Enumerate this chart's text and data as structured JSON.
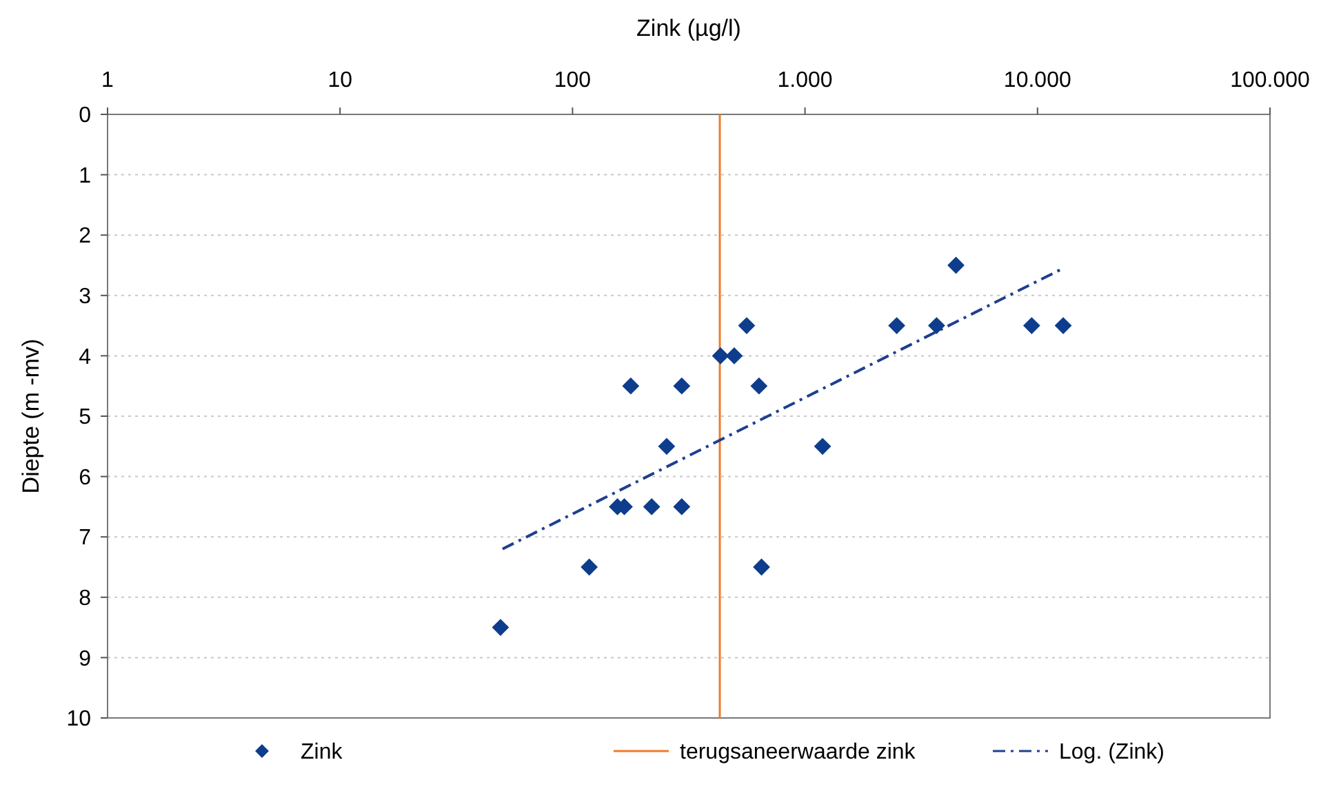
{
  "chart_data": {
    "type": "scatter",
    "xlabel": "Zink (µg/l)",
    "ylabel": "Diepte (m -mv)",
    "log": "x",
    "xlim": [
      1,
      100000
    ],
    "xticks": [
      1,
      10,
      100,
      {
        "value": 1000,
        "label": "1.000"
      },
      {
        "value": 10000,
        "label": "10.000"
      },
      {
        "value": 100000,
        "label": "100.000"
      }
    ],
    "ylim": [
      10,
      0
    ],
    "yticks": [
      0,
      1,
      2,
      3,
      4,
      5,
      6,
      7,
      8,
      9,
      10
    ],
    "grid": "y",
    "legend": "bottom",
    "series": [
      {
        "name": "Zink",
        "color": "#0d3d8c",
        "marker": "diamond",
        "x": [
          49,
          118,
          650,
          156,
          167,
          219,
          295,
          254,
          1190,
          178,
          295,
          634,
          433,
          496,
          561,
          4460,
          2480,
          3680,
          9440,
          12900
        ],
        "values": [
          8.5,
          7.5,
          7.5,
          6.5,
          6.5,
          6.5,
          6.5,
          5.5,
          5.5,
          4.5,
          4.5,
          4.5,
          4,
          4,
          3.5,
          2.5,
          3.5,
          3.5,
          3.5,
          3.5
        ]
      },
      {
        "name": "Log. (Zink)",
        "type": "line",
        "color": "#1f3f8f",
        "line_style": "dashed",
        "marker": "none",
        "x": [
          50,
          12900
        ],
        "values": [
          7.2,
          2.55
        ]
      }
    ],
    "ref_lines": [
      {
        "axis": "x",
        "value": 430,
        "label": "terugsaneerwaarde zink",
        "color": "#f07a2a",
        "line_style": "solid"
      }
    ]
  }
}
